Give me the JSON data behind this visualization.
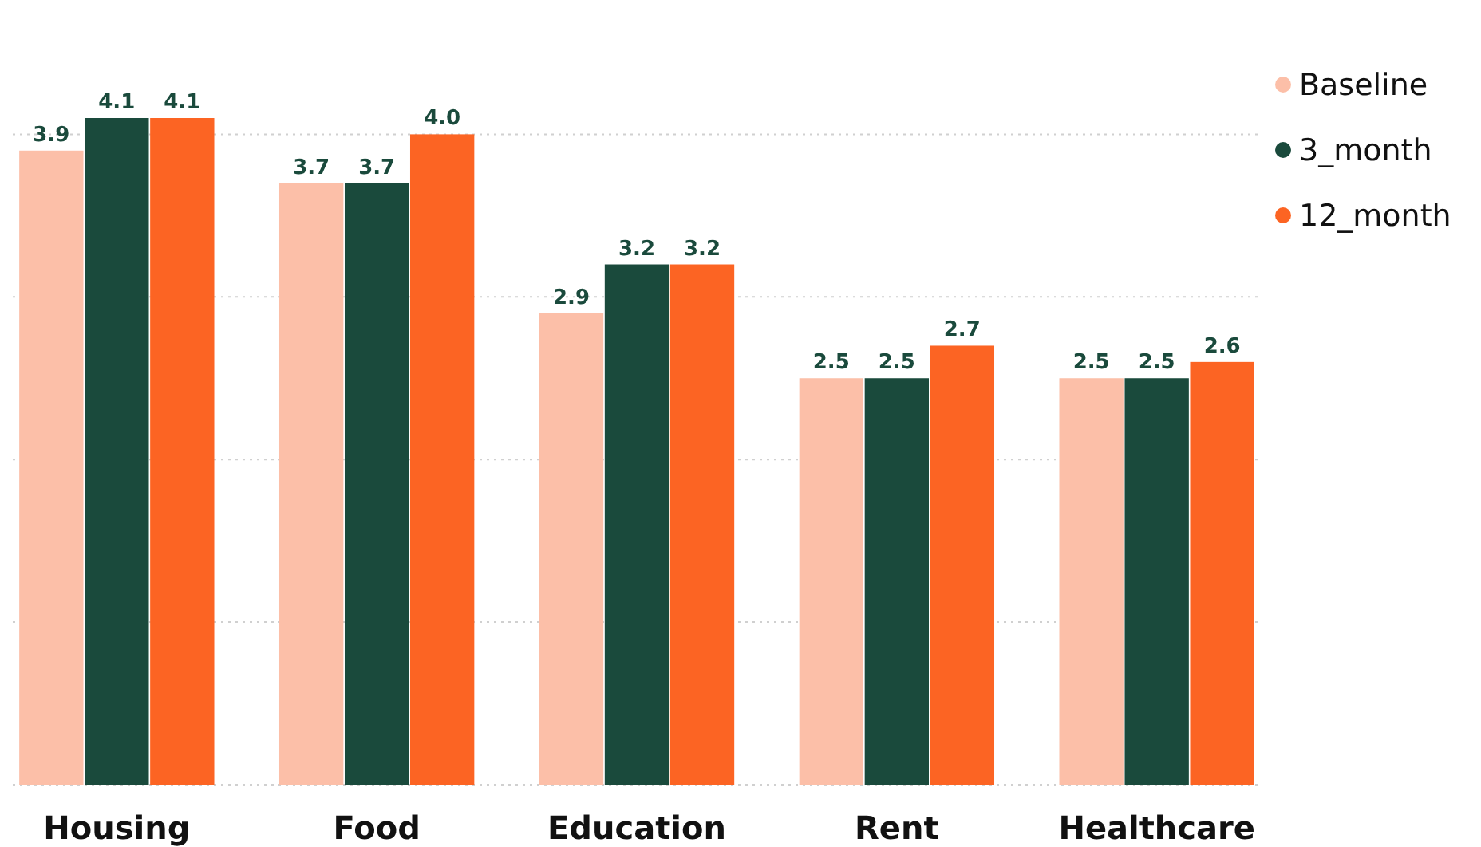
{
  "chart_data": {
    "type": "bar",
    "categories": [
      "Housing",
      "Food",
      "Education",
      "Rent",
      "Healthcare"
    ],
    "series": [
      {
        "name": "Baseline",
        "color": "#fcbfa8",
        "values": [
          3.9,
          3.7,
          2.9,
          2.5,
          2.5
        ],
        "value_labels": [
          "3.9",
          "3.7",
          "2.9",
          "2.5",
          "2.5"
        ]
      },
      {
        "name": "3_month",
        "color": "#1a4a3c",
        "values": [
          4.1,
          3.7,
          3.2,
          2.5,
          2.5
        ],
        "value_labels": [
          "4.1",
          "3.7",
          "3.2",
          "2.5",
          "2.5"
        ]
      },
      {
        "name": "12_month",
        "color": "#fc6423",
        "values": [
          4.1,
          4.0,
          3.2,
          2.7,
          2.6
        ],
        "value_labels": [
          "4.1",
          "4.0",
          "3.2",
          "2.7",
          "2.6"
        ]
      }
    ],
    "yticks": [
      {
        "value": 0,
        "label": null
      },
      {
        "value": 1,
        "label": null
      },
      {
        "value": 2,
        "label": null
      },
      {
        "value": 3,
        "label": null
      },
      {
        "value": 4,
        "label": null
      }
    ],
    "grid": "y",
    "tick_labels": "x",
    "legend": "top right"
  }
}
